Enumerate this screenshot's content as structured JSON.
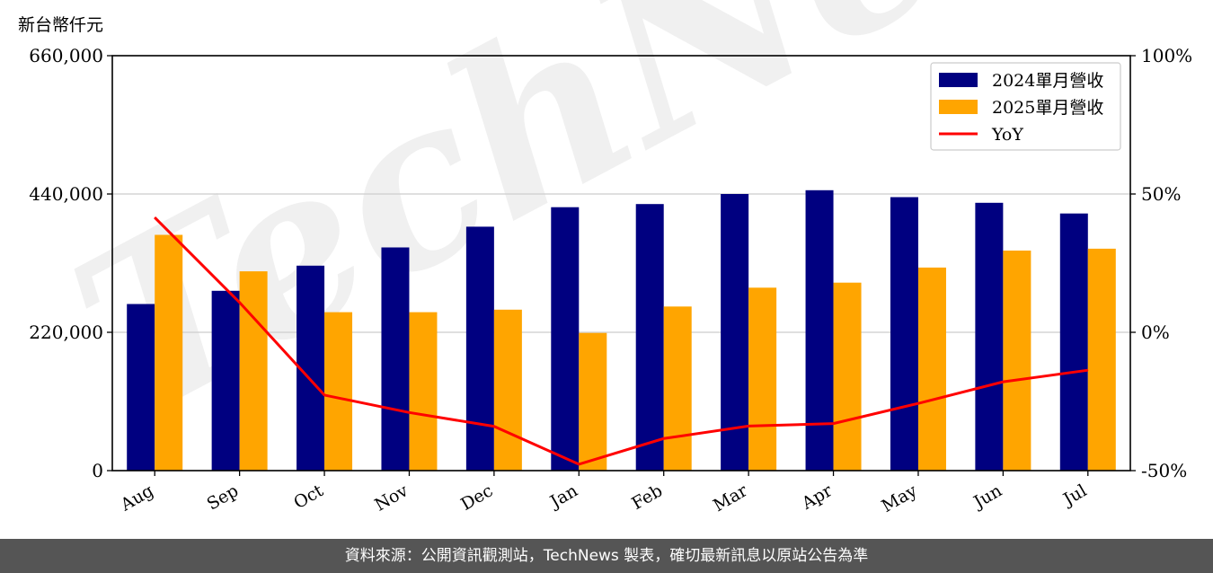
{
  "chart_data": {
    "type": "bar",
    "unit_label": "新台幣仟元",
    "categories": [
      "Aug",
      "Sep",
      "Oct",
      "Nov",
      "Dec",
      "Jan",
      "Feb",
      "Mar",
      "Apr",
      "May",
      "Jun",
      "Jul"
    ],
    "series": [
      {
        "name": "2024單月營收",
        "type": "bar",
        "color": "#000080",
        "values": [
          265000,
          286000,
          326000,
          355000,
          388000,
          419000,
          424000,
          440000,
          446000,
          435000,
          426000,
          409000
        ]
      },
      {
        "name": "2025單月營收",
        "type": "bar",
        "color": "#FFA500",
        "values": [
          375000,
          317000,
          252000,
          252000,
          256000,
          219000,
          261000,
          291000,
          299000,
          323000,
          350000,
          353000
        ]
      },
      {
        "name": "YoY",
        "type": "line",
        "color": "#FF0000",
        "axis": "right",
        "values": [
          41.5,
          10.8,
          -22.7,
          -29.0,
          -34.0,
          -47.7,
          -38.4,
          -33.9,
          -33.0,
          -25.7,
          -17.9,
          -13.7
        ]
      }
    ],
    "left_axis": {
      "min": 0,
      "max": 660000,
      "ticks": [
        0,
        220000,
        440000,
        660000
      ],
      "tick_labels": [
        "0",
        "220,000",
        "440,000",
        "660,000"
      ]
    },
    "right_axis": {
      "min": -50,
      "max": 100,
      "ticks": [
        -50,
        0,
        50,
        100
      ],
      "tick_labels": [
        "-50%",
        "0%",
        "50%",
        "100%"
      ]
    },
    "grid": true,
    "legend_position": "top-right"
  },
  "watermark": "TechNews",
  "footer": {
    "text": "資料來源：公開資訊觀測站，TechNews 製表，確切最新訊息以原站公告為準"
  }
}
